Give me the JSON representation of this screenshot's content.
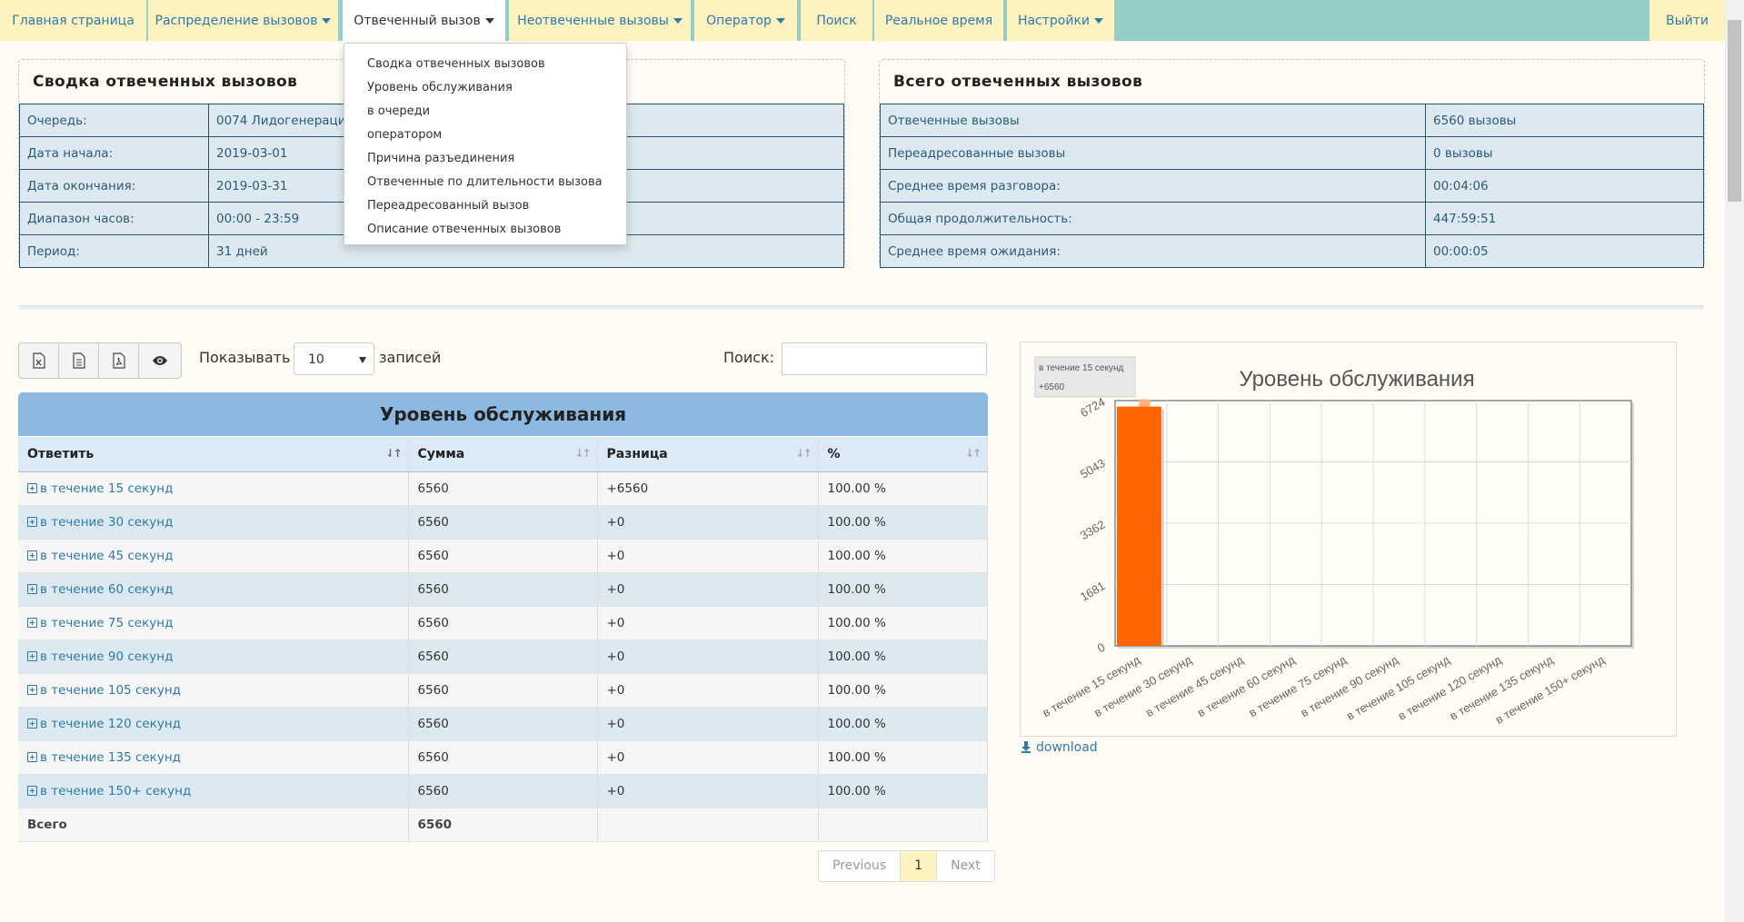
{
  "nav": {
    "items": [
      {
        "label": "Главная страница",
        "dropdown": false
      },
      {
        "label": "Распределение вызовов",
        "dropdown": true
      },
      {
        "label": "Отвеченный вызов",
        "dropdown": true,
        "active": true
      },
      {
        "label": "Неотвеченные вызовы",
        "dropdown": true
      },
      {
        "label": "Оператор",
        "dropdown": true
      },
      {
        "label": "Поиск",
        "dropdown": false
      },
      {
        "label": "Реальное время",
        "dropdown": false
      },
      {
        "label": "Настройки",
        "dropdown": true
      }
    ],
    "logout": "Выйти"
  },
  "dropdown": {
    "items": [
      "Сводка отвеченных вызовов",
      "Уровень обслуживания",
      "в очереди",
      "оператором",
      "Причина разъединения",
      "Отвеченные по длительности вызова",
      "Переадресованный вызов",
      "Описание отвеченных вызовов"
    ]
  },
  "summary_left": {
    "title": "Сводка отвеченных вызовов",
    "rows": [
      {
        "key": "Очередь:",
        "value": "0074 Лидогенерация,"
      },
      {
        "key": "Дата начала:",
        "value": "2019-03-01"
      },
      {
        "key": "Дата окончания:",
        "value": "2019-03-31"
      },
      {
        "key": "Диапазон часов:",
        "value": "00:00 - 23:59"
      },
      {
        "key": "Период:",
        "value": "31 дней"
      }
    ]
  },
  "summary_right": {
    "title": "Всего отвеченных вызовов",
    "rows": [
      {
        "key": "Отвеченные вызовы",
        "value": "6560 вызовы"
      },
      {
        "key": "Переадресованные вызовы",
        "value": "0 вызовы"
      },
      {
        "key": "Среднее время разговора:",
        "value": "00:04:06"
      },
      {
        "key": "Общая продолжительность:",
        "value": "447:59:51"
      },
      {
        "key": "Среднее время ожидания:",
        "value": "00:00:05"
      }
    ]
  },
  "toolbar": {
    "buttons": [
      "excel-export-icon",
      "csv-export-icon",
      "pdf-export-icon",
      "eye-icon"
    ],
    "show_label": "Показывать",
    "page_size": "10",
    "records_label": "записей",
    "search_label": "Поиск:",
    "search_value": ""
  },
  "table": {
    "title": "Уровень обслуживания",
    "columns": [
      "Ответить",
      "Сумма",
      "Разница",
      "%"
    ],
    "rows": [
      {
        "answer": "в течение 15 секунд",
        "sum": "6560",
        "diff": "+6560",
        "pct": "100.00 %"
      },
      {
        "answer": "в течение 30 секунд",
        "sum": "6560",
        "diff": "+0",
        "pct": "100.00 %"
      },
      {
        "answer": "в течение 45 секунд",
        "sum": "6560",
        "diff": "+0",
        "pct": "100.00 %"
      },
      {
        "answer": "в течение 60 секунд",
        "sum": "6560",
        "diff": "+0",
        "pct": "100.00 %"
      },
      {
        "answer": "в течение 75 секунд",
        "sum": "6560",
        "diff": "+0",
        "pct": "100.00 %"
      },
      {
        "answer": "в течение 90 секунд",
        "sum": "6560",
        "diff": "+0",
        "pct": "100.00 %"
      },
      {
        "answer": "в течение 105 секунд",
        "sum": "6560",
        "diff": "+0",
        "pct": "100.00 %"
      },
      {
        "answer": "в течение 120 секунд",
        "sum": "6560",
        "diff": "+0",
        "pct": "100.00 %"
      },
      {
        "answer": "в течение 135 секунд",
        "sum": "6560",
        "diff": "+0",
        "pct": "100.00 %"
      },
      {
        "answer": "в течение 150+ секунд",
        "sum": "6560",
        "diff": "+0",
        "pct": "100.00 %"
      }
    ],
    "total": {
      "label": "Всего",
      "sum": "6560",
      "diff": "",
      "pct": ""
    }
  },
  "pagination": {
    "previous": "Previous",
    "current": "1",
    "next": "Next"
  },
  "chart_data": {
    "type": "bar",
    "title": "Уровень обслуживания",
    "categories": [
      "в течение 15 секунд",
      "в течение 30 секунд",
      "в течение 45 секунд",
      "в течение 60 секунд",
      "в течение 75 секунд",
      "в течение 90 секунд",
      "в течение 105 секунд",
      "в течение 120 секунд",
      "в течение 135 секунд",
      "в течение 150+ секунд"
    ],
    "values": [
      6560,
      0,
      0,
      0,
      0,
      0,
      0,
      0,
      0,
      0
    ],
    "yticks": [
      "0",
      "1681",
      "3362",
      "5043",
      "6724"
    ],
    "ylim": [
      0,
      6724
    ],
    "bar_color": "#ff6600",
    "grid": true,
    "tooltip": {
      "label": "в течение 15 секунд",
      "value": "+6560"
    }
  },
  "download_label": "download"
}
